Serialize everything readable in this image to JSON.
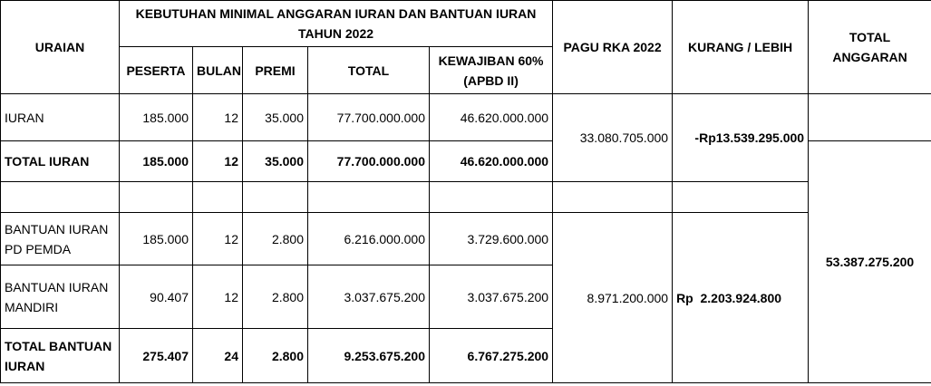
{
  "header": {
    "uraian": "URAIAN",
    "kebutuhan_line1": "KEBUTUHAN MINIMAL ANGGARAN IURAN DAN BANTUAN IURAN",
    "kebutuhan_line2": "TAHUN 2022",
    "peserta": "PESERTA",
    "bulan": "BULAN",
    "premi": "PREMI",
    "total": "TOTAL",
    "kewajiban_line1": "KEWAJIBAN 60%",
    "kewajiban_line2": "(APBD II)",
    "pagu": "PAGU RKA 2022",
    "kurang_lebih": "KURANG / LEBIH",
    "total_anggaran_line1": "TOTAL",
    "total_anggaran_line2": "ANGGARAN"
  },
  "rows": {
    "iuran": {
      "label": "IURAN",
      "peserta": "185.000",
      "bulan": "12",
      "premi": "35.000",
      "total": "77.700.000.000",
      "kewajiban": "46.620.000.000"
    },
    "total_iuran": {
      "label": "TOTAL IURAN",
      "peserta": "185.000",
      "bulan": "12",
      "premi": "35.000",
      "total": "77.700.000.000",
      "kewajiban": "46.620.000.000"
    },
    "bantuan_pemda": {
      "label_line1": "BANTUAN IURAN",
      "label_line2": "PD PEMDA",
      "peserta": "185.000",
      "bulan": "12",
      "premi": "2.800",
      "total": "6.216.000.000",
      "kewajiban": "3.729.600.000"
    },
    "bantuan_mandiri": {
      "label_line1": "BANTUAN IURAN",
      "label_line2": "MANDIRI",
      "peserta": "90.407",
      "bulan": "12",
      "premi": "2.800",
      "total": "3.037.675.200",
      "kewajiban": "3.037.675.200"
    },
    "total_bantuan": {
      "label_line1": "TOTAL BANTUAN",
      "label_line2": "IURAN",
      "peserta": "275.407",
      "bulan": "24",
      "premi": "2.800",
      "total": "9.253.675.200",
      "kewajiban": "6.767.275.200"
    }
  },
  "merged": {
    "pagu_iuran": "33.080.705.000",
    "kurang_iuran": "-Rp13.539.295.000",
    "pagu_bantuan": "8.971.200.000",
    "kurang_bantuan": "Rp  2.203.924.800",
    "total_anggaran": "53.387.275.200"
  }
}
